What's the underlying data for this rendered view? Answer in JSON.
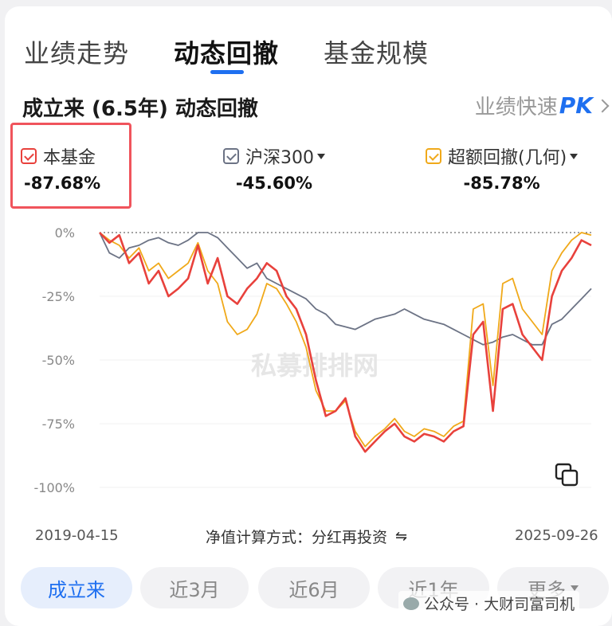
{
  "tabs": [
    {
      "label": "业绩走势"
    },
    {
      "label": "动态回撤"
    },
    {
      "label": "基金规模"
    }
  ],
  "title": "成立来 (6.5年) 动态回撤",
  "compare": {
    "label": "业绩快速",
    "pk": "PK"
  },
  "legend": [
    {
      "name": "本基金",
      "value": "-87.68%",
      "color": "#e8413c"
    },
    {
      "name": "沪深300",
      "value": "-45.60%",
      "color": "#6c7385"
    },
    {
      "name": "超额回撤(几何)",
      "value": "-85.78%",
      "color": "#f0a91a"
    }
  ],
  "chart_data": {
    "type": "line",
    "x_start": "2019-04-15",
    "x_end": "2025-09-26",
    "yticks": [
      "0%",
      "-25%",
      "-50%",
      "-75%",
      "-100%"
    ],
    "ylim": [
      -100,
      0
    ],
    "watermark": "私募排排网",
    "x": [
      0,
      0.02,
      0.04,
      0.06,
      0.08,
      0.1,
      0.12,
      0.14,
      0.16,
      0.18,
      0.2,
      0.22,
      0.24,
      0.26,
      0.28,
      0.3,
      0.32,
      0.34,
      0.36,
      0.38,
      0.4,
      0.42,
      0.44,
      0.46,
      0.48,
      0.5,
      0.52,
      0.54,
      0.56,
      0.58,
      0.6,
      0.62,
      0.64,
      0.66,
      0.68,
      0.7,
      0.72,
      0.74,
      0.76,
      0.78,
      0.8,
      0.82,
      0.84,
      0.86,
      0.88,
      0.9,
      0.92,
      0.94,
      0.96,
      0.98,
      1.0
    ],
    "series": [
      {
        "name": "本基金",
        "color": "#e8413c",
        "values": [
          0,
          -4,
          -1,
          -12,
          -8,
          -20,
          -15,
          -25,
          -22,
          -18,
          -5,
          -20,
          -10,
          -25,
          -28,
          -22,
          -18,
          -12,
          -15,
          -25,
          -30,
          -40,
          -58,
          -72,
          -70,
          -65,
          -80,
          -86,
          -82,
          -78,
          -75,
          -80,
          -82,
          -79,
          -80,
          -82,
          -78,
          -76,
          -40,
          -35,
          -70,
          -30,
          -28,
          -40,
          -45,
          -50,
          -25,
          -15,
          -10,
          -3,
          -5
        ]
      },
      {
        "name": "沪深300",
        "color": "#6c7385",
        "values": [
          0,
          -8,
          -10,
          -6,
          -5,
          -3,
          -2,
          -4,
          -5,
          -3,
          0,
          0,
          -2,
          -6,
          -10,
          -14,
          -12,
          -18,
          -20,
          -22,
          -24,
          -26,
          -30,
          -32,
          -36,
          -37,
          -38,
          -36,
          -34,
          -33,
          -32,
          -30,
          -32,
          -34,
          -35,
          -36,
          -38,
          -40,
          -42,
          -44,
          -43,
          -41,
          -40,
          -42,
          -44,
          -44,
          -36,
          -34,
          -30,
          -26,
          -22
        ]
      },
      {
        "name": "超额回撤(几何)",
        "color": "#f0a91a",
        "values": [
          0,
          -3,
          -5,
          -10,
          -6,
          -15,
          -12,
          -18,
          -15,
          -12,
          -4,
          -15,
          -20,
          -35,
          -40,
          -38,
          -32,
          -20,
          -22,
          -28,
          -35,
          -45,
          -62,
          -70,
          -70,
          -66,
          -78,
          -84,
          -80,
          -77,
          -73,
          -78,
          -80,
          -77,
          -78,
          -80,
          -76,
          -74,
          -30,
          -28,
          -60,
          -20,
          -18,
          -30,
          -35,
          -40,
          -15,
          -8,
          -3,
          0,
          -1
        ]
      }
    ]
  },
  "footer": {
    "method_label": "净值计算方式：",
    "method_value": "分红再投资",
    "swap": "⇋"
  },
  "periods": [
    {
      "label": "成立来",
      "active": true
    },
    {
      "label": "近3月"
    },
    {
      "label": "近6月"
    },
    {
      "label": "近1年"
    },
    {
      "label": "更多"
    }
  ],
  "account_watermark": "公众号 · 大财司富司机"
}
